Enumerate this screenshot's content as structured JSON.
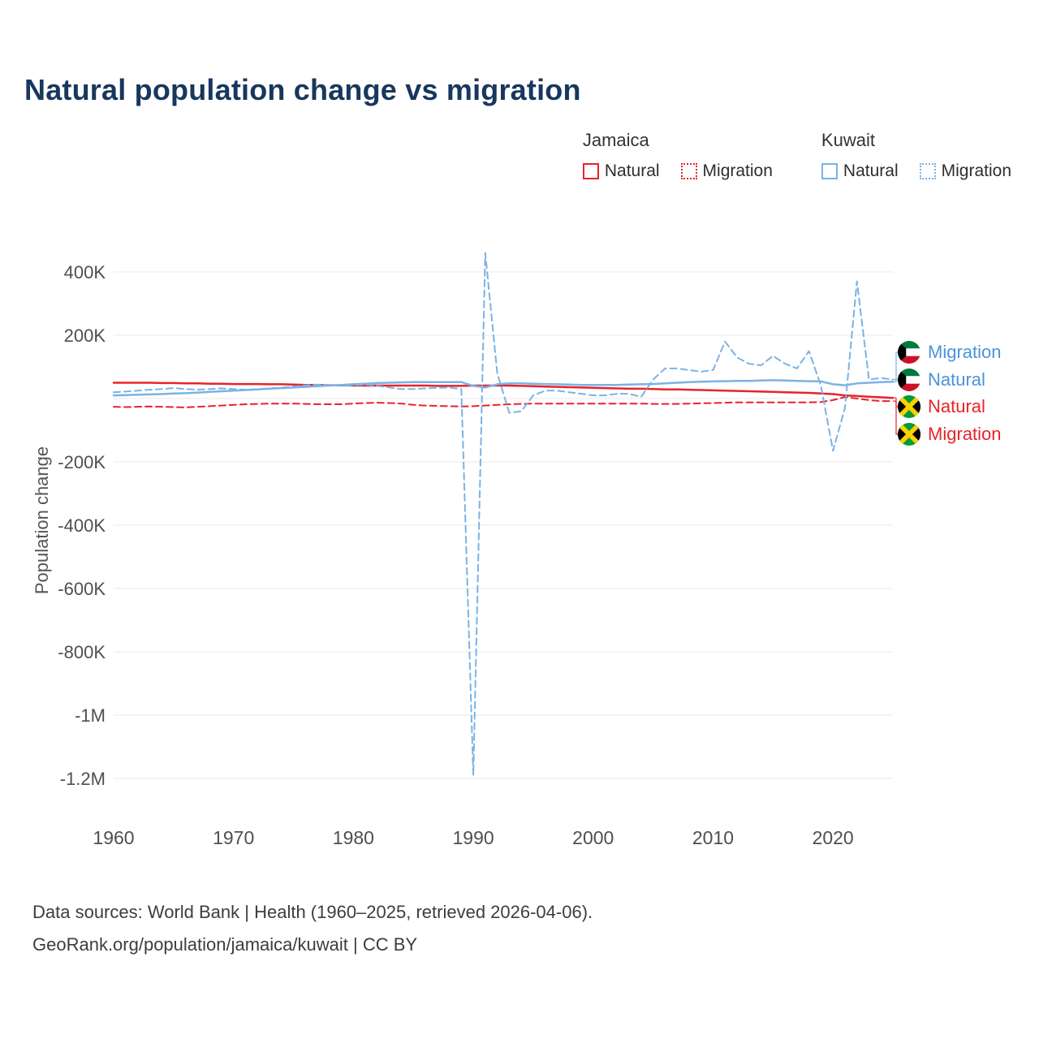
{
  "title": "Natural population change vs migration",
  "legend": {
    "groups": [
      {
        "name": "Jamaica",
        "items": [
          {
            "label": "Natural",
            "style": "solid",
            "color": "#e8232a"
          },
          {
            "label": "Migration",
            "style": "dashed",
            "color": "#e8232a"
          }
        ]
      },
      {
        "name": "Kuwait",
        "items": [
          {
            "label": "Natural",
            "style": "solid",
            "color": "#7ab3e5"
          },
          {
            "label": "Migration",
            "style": "dashed",
            "color": "#7ab3e5"
          }
        ]
      }
    ]
  },
  "y_axis": {
    "title": "Population change",
    "ticks": [
      {
        "value": 400000,
        "label": "400K"
      },
      {
        "value": 200000,
        "label": "200K"
      },
      {
        "value": 0,
        "label": ""
      },
      {
        "value": -200000,
        "label": "-200K"
      },
      {
        "value": -400000,
        "label": "-400K"
      },
      {
        "value": -600000,
        "label": "-600K"
      },
      {
        "value": -800000,
        "label": "-800K"
      },
      {
        "value": -1000000,
        "label": "-1M"
      },
      {
        "value": -1200000,
        "label": "-1.2M"
      }
    ]
  },
  "x_axis": {
    "ticks": [
      1960,
      1970,
      1980,
      1990,
      2000,
      2010,
      2020
    ]
  },
  "end_labels": [
    {
      "label": "Migration",
      "country": "Kuwait",
      "series": "Kuwait Migration",
      "color": "#4a94d8"
    },
    {
      "label": "Natural",
      "country": "Kuwait",
      "series": "Kuwait Natural",
      "color": "#4a94d8"
    },
    {
      "label": "Natural",
      "country": "Jamaica",
      "series": "Jamaica Natural",
      "color": "#e8232a"
    },
    {
      "label": "Migration",
      "country": "Jamaica",
      "series": "Jamaica Migration",
      "color": "#e8232a"
    }
  ],
  "footer": {
    "line1": "Data sources: World Bank | Health (1960–2025, retrieved 2026-04-06).",
    "line2": "GeoRank.org/population/jamaica/kuwait | CC BY"
  },
  "chart_data": {
    "type": "line",
    "title": "Natural population change vs migration",
    "xlabel": "",
    "ylabel": "Population change",
    "x_range": [
      1960,
      2025
    ],
    "ylim": [
      -1250000,
      480000
    ],
    "grid": true,
    "legend_position": "top-right",
    "x": [
      1960,
      1961,
      1962,
      1963,
      1964,
      1965,
      1966,
      1967,
      1968,
      1969,
      1970,
      1971,
      1972,
      1973,
      1974,
      1975,
      1976,
      1977,
      1978,
      1979,
      1980,
      1981,
      1982,
      1983,
      1984,
      1985,
      1986,
      1987,
      1988,
      1989,
      1990,
      1991,
      1992,
      1993,
      1994,
      1995,
      1996,
      1997,
      1998,
      1999,
      2000,
      2001,
      2002,
      2003,
      2004,
      2005,
      2006,
      2007,
      2008,
      2009,
      2010,
      2011,
      2012,
      2013,
      2014,
      2015,
      2016,
      2017,
      2018,
      2019,
      2020,
      2021,
      2022,
      2023,
      2024,
      2025
    ],
    "series": [
      {
        "name": "Jamaica Natural",
        "color": "#e8232a",
        "dash": "solid",
        "values": [
          50000,
          50000,
          50000,
          50000,
          49000,
          49000,
          48000,
          48000,
          47000,
          47000,
          46000,
          46000,
          46000,
          45000,
          45000,
          44000,
          43000,
          43000,
          42000,
          42000,
          41000,
          41000,
          41000,
          41000,
          41000,
          41000,
          41000,
          40000,
          40000,
          40000,
          41000,
          41000,
          41000,
          41000,
          40000,
          39000,
          38000,
          37000,
          36000,
          35000,
          34000,
          33000,
          32000,
          31000,
          31000,
          30000,
          29000,
          29000,
          28000,
          27000,
          26000,
          25000,
          24000,
          23000,
          22000,
          21000,
          20000,
          19000,
          18000,
          16000,
          14000,
          10000,
          8000,
          6000,
          4000,
          2000
        ]
      },
      {
        "name": "Jamaica Migration",
        "color": "#e8232a",
        "dash": "dashed",
        "values": [
          -26000,
          -27000,
          -26000,
          -25000,
          -26000,
          -27000,
          -28000,
          -26000,
          -24000,
          -22000,
          -20000,
          -18000,
          -17000,
          -16000,
          -16000,
          -16000,
          -17000,
          -18000,
          -18000,
          -18000,
          -16000,
          -14000,
          -13000,
          -14000,
          -16000,
          -20000,
          -22000,
          -23000,
          -24000,
          -25000,
          -24000,
          -22000,
          -20000,
          -18000,
          -17000,
          -16000,
          -16000,
          -16000,
          -16000,
          -16000,
          -16000,
          -16000,
          -16000,
          -16000,
          -16000,
          -17000,
          -17000,
          -17000,
          -16000,
          -15000,
          -14000,
          -13000,
          -12000,
          -12000,
          -12000,
          -12000,
          -12000,
          -12000,
          -12000,
          -11000,
          -5000,
          5000,
          0,
          -5000,
          -8000,
          -8000
        ]
      },
      {
        "name": "Kuwait Natural",
        "color": "#7ab3e5",
        "dash": "solid",
        "values": [
          10000,
          11000,
          12000,
          13000,
          14000,
          16000,
          17000,
          19000,
          21000,
          23000,
          25000,
          27000,
          29000,
          31000,
          33000,
          35000,
          37000,
          39000,
          41000,
          43000,
          45000,
          47000,
          49000,
          50000,
          51000,
          52000,
          52000,
          52000,
          52000,
          52000,
          40000,
          35000,
          45000,
          48000,
          48000,
          47000,
          46000,
          45000,
          44000,
          43000,
          43000,
          43000,
          43000,
          44000,
          45000,
          46000,
          48000,
          50000,
          52000,
          53000,
          54000,
          55000,
          56000,
          56000,
          57000,
          58000,
          57000,
          56000,
          55000,
          54000,
          45000,
          42000,
          48000,
          50000,
          52000,
          53000
        ]
      },
      {
        "name": "Kuwait Migration",
        "color": "#7ab3e5",
        "dash": "dashed",
        "values": [
          20000,
          22000,
          25000,
          28000,
          30000,
          33000,
          30000,
          28000,
          30000,
          32000,
          30000,
          28000,
          30000,
          32000,
          35000,
          38000,
          42000,
          44000,
          42000,
          40000,
          42000,
          44000,
          40000,
          35000,
          30000,
          30000,
          32000,
          34000,
          35000,
          30000,
          -1190000,
          460000,
          80000,
          -45000,
          -40000,
          10000,
          25000,
          25000,
          20000,
          15000,
          10000,
          10000,
          15000,
          15000,
          5000,
          60000,
          95000,
          95000,
          90000,
          85000,
          90000,
          180000,
          130000,
          110000,
          105000,
          135000,
          110000,
          95000,
          150000,
          40000,
          -165000,
          -30000,
          370000,
          60000,
          65000,
          60000
        ]
      }
    ]
  }
}
